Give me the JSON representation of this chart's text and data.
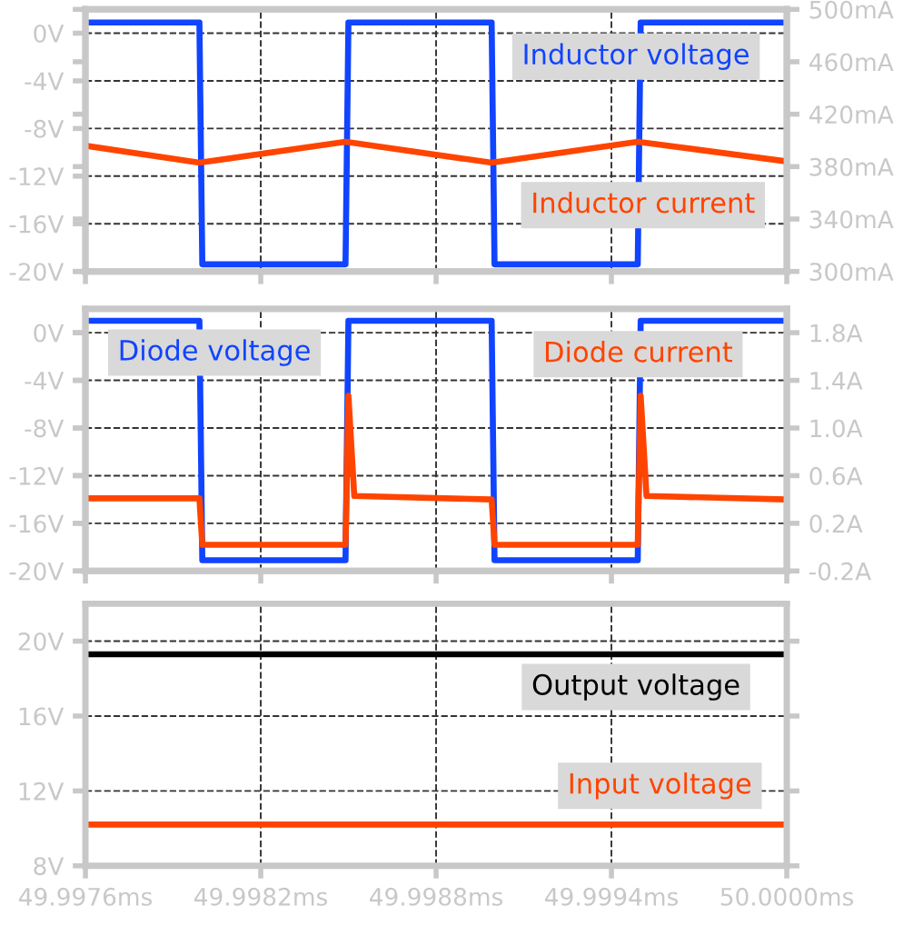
{
  "chart_data": [
    {
      "type": "line",
      "grid": true,
      "legend": false,
      "tick_labels": "y",
      "xlim": [
        49.9976,
        50.0
      ],
      "xticks": [
        49.9976,
        49.9982,
        49.9988,
        49.9994,
        50.0
      ],
      "ylim": [
        -20,
        2
      ],
      "yticks": [
        {
          "value": -20,
          "label": "-20V"
        },
        {
          "value": -16,
          "label": "-16V"
        },
        {
          "value": -12,
          "label": "-12V"
        },
        {
          "value": -8,
          "label": "-8V"
        },
        {
          "value": -4,
          "label": "-4V"
        },
        {
          "value": 0,
          "label": "0V"
        }
      ],
      "y2lim": [
        300,
        500
      ],
      "y2ticks": [
        {
          "value": 300,
          "label": "300mA"
        },
        {
          "value": 340,
          "label": "340mA"
        },
        {
          "value": 380,
          "label": "380mA"
        },
        {
          "value": 420,
          "label": "420mA"
        },
        {
          "value": 460,
          "label": "460mA"
        },
        {
          "value": 500,
          "label": "500mA"
        }
      ],
      "series": [
        {
          "name": "Inductor voltage",
          "color": "#1144ff",
          "x": [
            49.9976,
            49.99799,
            49.998,
            49.99849,
            49.9985,
            49.99899,
            49.999,
            49.99949,
            49.9995,
            50.0
          ],
          "values": [
            0.9,
            0.9,
            -19.4,
            -19.4,
            0.9,
            0.9,
            -19.4,
            -19.4,
            0.9,
            0.9
          ]
        },
        {
          "name": "Inductor current",
          "color": "#ff4400",
          "axis": "y2",
          "x": [
            49.9976,
            49.99799,
            49.99849,
            49.99899,
            49.99949,
            50.0
          ],
          "values": [
            396,
            383,
            399,
            383,
            399,
            384
          ]
        }
      ]
    },
    {
      "type": "line",
      "grid": true,
      "legend": false,
      "tick_labels": "y",
      "xlim": [
        49.9976,
        50.0
      ],
      "xticks": [
        49.9976,
        49.9982,
        49.9988,
        49.9994,
        50.0
      ],
      "ylim": [
        -20,
        2
      ],
      "yticks": [
        {
          "value": -20,
          "label": "-20V"
        },
        {
          "value": -16,
          "label": "-16V"
        },
        {
          "value": -12,
          "label": "-12V"
        },
        {
          "value": -8,
          "label": "-8V"
        },
        {
          "value": -4,
          "label": "-4V"
        },
        {
          "value": 0,
          "label": "0V"
        }
      ],
      "y2lim": [
        -0.2,
        2.0
      ],
      "y2ticks": [
        {
          "value": -0.2,
          "label": "-0.2A"
        },
        {
          "value": 0.2,
          "label": "0.2A"
        },
        {
          "value": 0.6,
          "label": "0.6A"
        },
        {
          "value": 1.0,
          "label": "1.0A"
        },
        {
          "value": 1.4,
          "label": "1.4A"
        },
        {
          "value": 1.8,
          "label": "1.8A"
        }
      ],
      "series": [
        {
          "name": "Diode voltage",
          "color": "#1144ff",
          "x": [
            49.9976,
            49.99799,
            49.998,
            49.99849,
            49.9985,
            49.99899,
            49.999,
            49.99949,
            49.9995,
            50.0
          ],
          "values": [
            1.0,
            1.0,
            -19.1,
            -19.1,
            1.0,
            1.0,
            -19.1,
            -19.1,
            1.0,
            1.0
          ]
        },
        {
          "name": "Diode current",
          "color": "#ff4400",
          "axis": "y2",
          "x": [
            49.9976,
            49.99799,
            49.998,
            49.99849,
            49.9985,
            49.99852,
            49.99899,
            49.999,
            49.99949,
            49.9995,
            49.99952,
            50.0
          ],
          "values": [
            0.41,
            0.41,
            0.02,
            0.02,
            1.27,
            0.43,
            0.4,
            0.02,
            0.02,
            1.27,
            0.43,
            0.4
          ]
        }
      ]
    },
    {
      "type": "line",
      "grid": true,
      "legend": false,
      "xlim": [
        49.9976,
        50.0
      ],
      "xticks": [
        {
          "value": 49.9976,
          "label": "49.9976ms"
        },
        {
          "value": 49.9982,
          "label": "49.9982ms"
        },
        {
          "value": 49.9988,
          "label": "49.9988ms"
        },
        {
          "value": 49.9994,
          "label": "49.9994ms"
        },
        {
          "value": 50.0,
          "label": "50.0000ms"
        }
      ],
      "ylim": [
        8,
        22
      ],
      "yticks": [
        {
          "value": 8,
          "label": "8V"
        },
        {
          "value": 12,
          "label": "12V"
        },
        {
          "value": 16,
          "label": "16V"
        },
        {
          "value": 20,
          "label": "20V"
        }
      ],
      "series": [
        {
          "name": "Output voltage",
          "color": "#000000",
          "x": [
            49.9976,
            50.0
          ],
          "values": [
            19.3,
            19.3
          ]
        },
        {
          "name": "Input voltage",
          "color": "#ff4400",
          "x": [
            49.9976,
            50.0
          ],
          "values": [
            10.2,
            10.2
          ]
        }
      ]
    }
  ]
}
